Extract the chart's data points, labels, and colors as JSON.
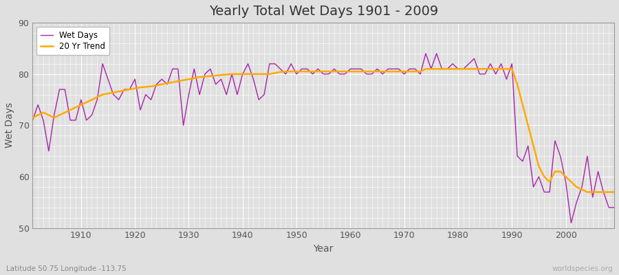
{
  "title": "Yearly Total Wet Days 1901 - 2009",
  "xlabel": "Year",
  "ylabel": "Wet Days",
  "subtitle": "Latitude 50.75 Longitude -113.75",
  "watermark": "worldspecies.org",
  "ylim": [
    50,
    90
  ],
  "xlim": [
    1901,
    2009
  ],
  "yticks": [
    50,
    60,
    70,
    80,
    90
  ],
  "xticks": [
    1910,
    1920,
    1930,
    1940,
    1950,
    1960,
    1970,
    1980,
    1990,
    2000
  ],
  "line_color": "#aa22aa",
  "trend_color": "#ffaa00",
  "background_color": "#e0e0e0",
  "plot_bg_color": "#e0e0e0",
  "wet_days": {
    "1901": 71,
    "1902": 74,
    "1903": 71,
    "1904": 65,
    "1905": 72,
    "1906": 77,
    "1907": 77,
    "1908": 71,
    "1909": 71,
    "1910": 75,
    "1911": 71,
    "1912": 72,
    "1913": 75,
    "1914": 82,
    "1915": 79,
    "1916": 76,
    "1917": 75,
    "1918": 77,
    "1919": 77,
    "1920": 79,
    "1921": 73,
    "1922": 76,
    "1923": 75,
    "1924": 78,
    "1925": 79,
    "1926": 78,
    "1927": 81,
    "1928": 81,
    "1929": 70,
    "1930": 76,
    "1931": 81,
    "1932": 76,
    "1933": 80,
    "1934": 81,
    "1935": 78,
    "1936": 79,
    "1937": 76,
    "1938": 80,
    "1939": 76,
    "1940": 80,
    "1941": 82,
    "1942": 79,
    "1943": 75,
    "1944": 76,
    "1945": 82,
    "1946": 82,
    "1947": 81,
    "1948": 80,
    "1949": 82,
    "1950": 80,
    "1951": 81,
    "1952": 81,
    "1953": 80,
    "1954": 81,
    "1955": 80,
    "1956": 80,
    "1957": 81,
    "1958": 80,
    "1959": 80,
    "1960": 81,
    "1961": 81,
    "1962": 81,
    "1963": 80,
    "1964": 80,
    "1965": 81,
    "1966": 80,
    "1967": 81,
    "1968": 81,
    "1969": 81,
    "1970": 80,
    "1971": 81,
    "1972": 81,
    "1973": 80,
    "1974": 84,
    "1975": 81,
    "1976": 84,
    "1977": 81,
    "1978": 81,
    "1979": 82,
    "1980": 81,
    "1981": 81,
    "1982": 82,
    "1983": 83,
    "1984": 80,
    "1985": 80,
    "1986": 82,
    "1987": 80,
    "1988": 82,
    "1989": 79,
    "1990": 82,
    "1991": 64,
    "1992": 63,
    "1993": 66,
    "1994": 58,
    "1995": 60,
    "1996": 57,
    "1997": 57,
    "1998": 67,
    "1999": 64,
    "2000": 59,
    "2001": 51,
    "2002": 55,
    "2003": 58,
    "2004": 64,
    "2005": 56,
    "2006": 61,
    "2007": 57,
    "2008": 54,
    "2009": 54
  },
  "trend_20yr": {
    "1901": 71.5,
    "1902": 72.0,
    "1903": 72.5,
    "1904": 72.0,
    "1905": 71.5,
    "1906": 72.0,
    "1907": 72.5,
    "1908": 73.0,
    "1909": 73.5,
    "1910": 74.0,
    "1911": 74.5,
    "1912": 75.0,
    "1913": 75.5,
    "1914": 76.0,
    "1915": 76.2,
    "1916": 76.4,
    "1917": 76.6,
    "1918": 76.8,
    "1919": 77.0,
    "1920": 77.2,
    "1921": 77.4,
    "1922": 77.5,
    "1923": 77.6,
    "1924": 77.8,
    "1925": 78.0,
    "1926": 78.2,
    "1927": 78.4,
    "1928": 78.6,
    "1929": 78.8,
    "1930": 79.0,
    "1931": 79.2,
    "1932": 79.4,
    "1933": 79.5,
    "1934": 79.6,
    "1935": 79.7,
    "1936": 79.8,
    "1937": 79.9,
    "1938": 80.0,
    "1939": 80.0,
    "1940": 80.0,
    "1941": 80.0,
    "1942": 80.0,
    "1943": 80.0,
    "1944": 80.0,
    "1945": 80.0,
    "1946": 80.2,
    "1947": 80.4,
    "1948": 80.5,
    "1949": 80.5,
    "1950": 80.5,
    "1951": 80.5,
    "1952": 80.5,
    "1953": 80.5,
    "1954": 80.5,
    "1955": 80.5,
    "1956": 80.5,
    "1957": 80.5,
    "1958": 80.5,
    "1959": 80.5,
    "1960": 80.5,
    "1961": 80.5,
    "1962": 80.5,
    "1963": 80.5,
    "1964": 80.5,
    "1965": 80.5,
    "1966": 80.5,
    "1967": 80.5,
    "1968": 80.5,
    "1969": 80.5,
    "1970": 80.5,
    "1971": 80.5,
    "1972": 80.5,
    "1973": 80.5,
    "1974": 81.0,
    "1975": 81.0,
    "1976": 81.0,
    "1977": 81.0,
    "1978": 81.0,
    "1979": 81.0,
    "1980": 81.0,
    "1981": 81.0,
    "1982": 81.0,
    "1983": 81.0,
    "1984": 81.0,
    "1985": 81.0,
    "1986": 81.0,
    "1987": 81.0,
    "1988": 81.0,
    "1989": 81.0,
    "1990": 81.0,
    "1991": 78.0,
    "1992": 74.0,
    "1993": 70.0,
    "1994": 66.0,
    "1995": 62.0,
    "1996": 60.0,
    "1997": 59.0,
    "1998": 61.0,
    "1999": 61.0,
    "2000": 60.0,
    "2001": 59.0,
    "2002": 58.0,
    "2003": 57.5,
    "2004": 57.0,
    "2005": 57.0,
    "2006": 57.0,
    "2007": 57.0,
    "2008": 57.0,
    "2009": 57.0
  },
  "legend_wet_days": "Wet Days",
  "legend_trend": "20 Yr Trend"
}
